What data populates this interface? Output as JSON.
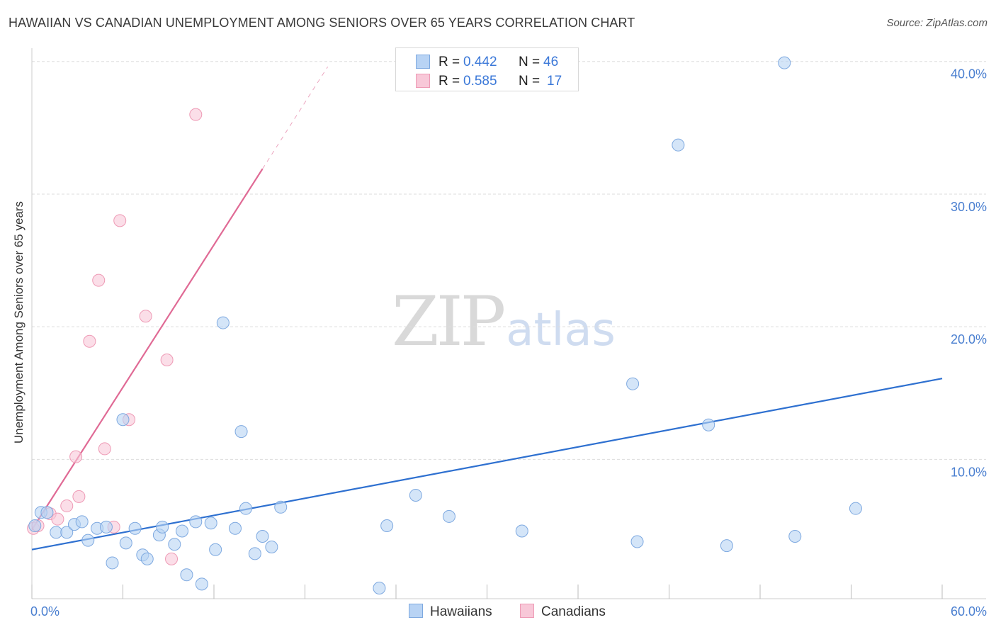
{
  "title": "HAWAIIAN VS CANADIAN UNEMPLOYMENT AMONG SENIORS OVER 65 YEARS CORRELATION CHART",
  "source": "Source: ZipAtlas.com",
  "watermark": {
    "zip": "ZIP",
    "atlas": "atlas"
  },
  "legend": {
    "rows": [
      {
        "r_label": "R = ",
        "r_value": "0.442",
        "n_label": "N = ",
        "n_value": "46"
      },
      {
        "r_label": "R = ",
        "r_value": "0.585",
        "n_label": "N = ",
        "n_value": "17"
      }
    ]
  },
  "chart_data": {
    "type": "scatter",
    "title": "HAWAIIAN VS CANADIAN UNEMPLOYMENT AMONG SENIORS OVER 65 YEARS CORRELATION CHART",
    "xlabel": "",
    "ylabel": "Unemployment Among Seniors over 65 years",
    "xlim": [
      0,
      60
    ],
    "ylim": [
      -0.5,
      41
    ],
    "x_tick_labels": [
      {
        "value": 0,
        "label": "0.0%"
      },
      {
        "value": 60,
        "label": "60.0%"
      }
    ],
    "y_tick_labels": [
      {
        "value": 10,
        "label": "10.0%"
      },
      {
        "value": 20,
        "label": "20.0%"
      },
      {
        "value": 30,
        "label": "30.0%"
      },
      {
        "value": 40,
        "label": "40.0%"
      }
    ],
    "x_minor_ticks": [
      0,
      6,
      12,
      18,
      24,
      30,
      36,
      42,
      48,
      54,
      60
    ],
    "grid": true,
    "colors": {
      "hawaiians_fill": "#b8d3f4",
      "hawaiians_stroke": "#7ea9e0",
      "hawaiians_line": "#2e70d0",
      "canadians_fill": "#f8c8d8",
      "canadians_stroke": "#ee9ab5",
      "canadians_line": "#e06a95",
      "tick_label": "#4a7fd0",
      "grid": "#dddddd"
    },
    "series": [
      {
        "name": "Hawaiians",
        "points": [
          [
            0.2,
            5.0
          ],
          [
            0.6,
            6.0
          ],
          [
            1.0,
            6.0
          ],
          [
            1.6,
            4.5
          ],
          [
            2.3,
            4.5
          ],
          [
            2.8,
            5.1
          ],
          [
            3.3,
            5.3
          ],
          [
            3.7,
            3.9
          ],
          [
            4.3,
            4.8
          ],
          [
            4.9,
            4.9
          ],
          [
            5.3,
            2.2
          ],
          [
            6.0,
            13.0
          ],
          [
            6.2,
            3.7
          ],
          [
            6.8,
            4.8
          ],
          [
            7.3,
            2.8
          ],
          [
            7.6,
            2.5
          ],
          [
            8.4,
            4.3
          ],
          [
            8.6,
            4.9
          ],
          [
            9.4,
            3.6
          ],
          [
            9.9,
            4.6
          ],
          [
            10.2,
            1.3
          ],
          [
            10.8,
            5.3
          ],
          [
            11.2,
            0.6
          ],
          [
            11.8,
            5.2
          ],
          [
            12.1,
            3.2
          ],
          [
            12.6,
            20.3
          ],
          [
            13.4,
            4.8
          ],
          [
            13.8,
            12.1
          ],
          [
            14.1,
            6.3
          ],
          [
            14.7,
            2.9
          ],
          [
            15.2,
            4.2
          ],
          [
            15.8,
            3.4
          ],
          [
            16.4,
            6.4
          ],
          [
            22.9,
            0.3
          ],
          [
            23.4,
            5.0
          ],
          [
            25.3,
            7.3
          ],
          [
            27.5,
            5.7
          ],
          [
            32.3,
            4.6
          ],
          [
            39.6,
            15.7
          ],
          [
            39.9,
            3.8
          ],
          [
            42.6,
            33.7
          ],
          [
            44.6,
            12.6
          ],
          [
            45.8,
            3.5
          ],
          [
            49.6,
            39.9
          ],
          [
            50.3,
            4.2
          ],
          [
            54.3,
            6.3
          ]
        ],
        "trend": {
          "x": [
            0,
            60
          ],
          "y": [
            3.2,
            16.1
          ]
        }
      },
      {
        "name": "Canadians",
        "points": [
          [
            0.1,
            4.8
          ],
          [
            0.4,
            5.0
          ],
          [
            1.2,
            5.9
          ],
          [
            1.7,
            5.5
          ],
          [
            2.3,
            6.5
          ],
          [
            2.9,
            10.2
          ],
          [
            3.1,
            7.2
          ],
          [
            3.8,
            18.9
          ],
          [
            4.4,
            23.5
          ],
          [
            4.8,
            10.8
          ],
          [
            5.4,
            4.9
          ],
          [
            5.8,
            28.0
          ],
          [
            6.4,
            13.0
          ],
          [
            7.5,
            20.8
          ],
          [
            8.9,
            17.5
          ],
          [
            9.2,
            2.5
          ],
          [
            10.8,
            36.0
          ]
        ],
        "trend": {
          "x": [
            0,
            15.2
          ],
          "y": [
            4.7,
            31.9
          ]
        },
        "trend_extension": {
          "x": [
            15.2,
            19.5
          ],
          "y": [
            31.9,
            39.6
          ]
        }
      }
    ]
  }
}
